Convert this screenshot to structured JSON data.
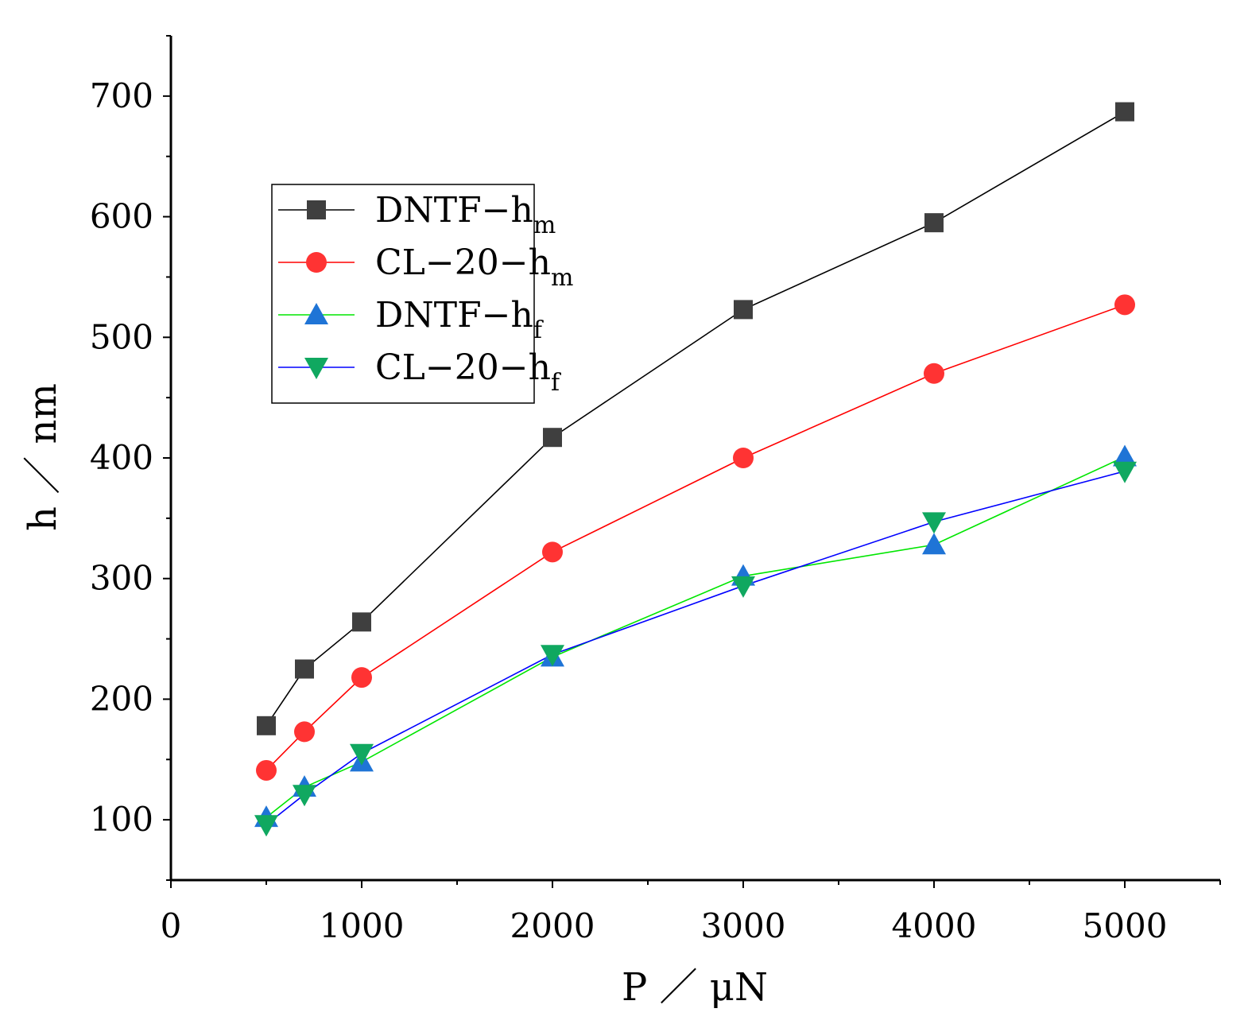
{
  "chart_data": {
    "type": "line",
    "title": "",
    "xlabel": "P ／ μN",
    "ylabel": "h ／ nm",
    "xlim": [
      0,
      5500
    ],
    "ylim": [
      50,
      750
    ],
    "x_ticks": [
      0,
      1000,
      2000,
      3000,
      4000,
      5000
    ],
    "x_tick_labels": [
      "0",
      "1000",
      "2000",
      "3000",
      "4000",
      "5000"
    ],
    "y_ticks": [
      100,
      200,
      300,
      400,
      500,
      600,
      700
    ],
    "y_tick_labels": [
      "100",
      "200",
      "300",
      "400",
      "500",
      "600",
      "700"
    ],
    "grid": false,
    "legend_position": "upper-left",
    "x": [
      500,
      700,
      1000,
      2000,
      3000,
      4000,
      5000
    ],
    "series": [
      {
        "name": "DNTF-hm",
        "label_main": "DNTF−h",
        "label_sub": "m",
        "color": "#000000",
        "marker_color": "#3f3f3f",
        "marker": "square",
        "values": [
          178,
          225,
          264,
          417,
          523,
          595,
          687
        ]
      },
      {
        "name": "CL-20-hm",
        "label_main": "CL−20−h",
        "label_sub": "m",
        "color": "#ff0000",
        "marker_color": "#ff3333",
        "marker": "circle",
        "values": [
          141,
          173,
          218,
          322,
          400,
          470,
          527
        ]
      },
      {
        "name": "DNTF-hf",
        "label_main": "DNTF−h",
        "label_sub": "f",
        "color": "#00e600",
        "marker_color": "#1f74d6",
        "marker": "triangle-up",
        "values": [
          102,
          127,
          148,
          235,
          302,
          328,
          401
        ]
      },
      {
        "name": "CL-20-hf",
        "label_main": "CL−20−h",
        "label_sub": "f",
        "color": "#0000ff",
        "marker_color": "#10a860",
        "marker": "triangle-down",
        "values": [
          96,
          121,
          155,
          237,
          294,
          347,
          389
        ]
      }
    ]
  }
}
